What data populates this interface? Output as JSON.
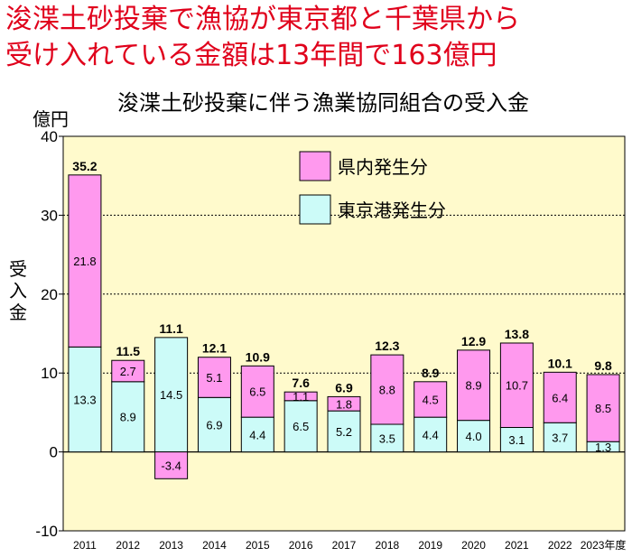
{
  "headline": {
    "line1": "浚渫土砂投棄で漁協が東京都と千葉県から",
    "line2": "受け入れている金額は13年間で163億円"
  },
  "chart_data": {
    "type": "bar",
    "stacked": true,
    "title": "浚渫土砂投棄に伴う漁業協同組合の受入金",
    "y_unit": "億円",
    "ylabel": "受入金",
    "ylim": [
      -10,
      40
    ],
    "yticks": [
      -10,
      0,
      10,
      20,
      30,
      40
    ],
    "grid": true,
    "legend": "top-right",
    "categories": [
      "2011",
      "2012",
      "2013",
      "2014",
      "2015",
      "2016",
      "2017",
      "2018",
      "2019",
      "2020",
      "2021",
      "2022",
      "2023年度"
    ],
    "series": [
      {
        "name": "東京港発生分",
        "color": "#ccfbf8",
        "values": [
          13.3,
          8.9,
          14.5,
          6.9,
          4.4,
          6.5,
          5.2,
          3.5,
          4.4,
          4.0,
          3.1,
          3.7,
          1.3
        ]
      },
      {
        "name": "県内発生分",
        "color": "#ff99ee",
        "values": [
          21.8,
          2.7,
          -3.4,
          5.1,
          6.5,
          1.1,
          1.8,
          8.8,
          4.5,
          8.9,
          10.7,
          6.4,
          8.5
        ]
      }
    ],
    "totals": [
      "35.2",
      "11.5",
      "11.1",
      "12.1",
      "10.9",
      "7.6",
      "6.9",
      "12.3",
      "8.9",
      "12.9",
      "13.8",
      "10.1",
      "9.8"
    ],
    "colors": {
      "plot_background": "#fffacc",
      "headline": "#e0001b"
    }
  }
}
